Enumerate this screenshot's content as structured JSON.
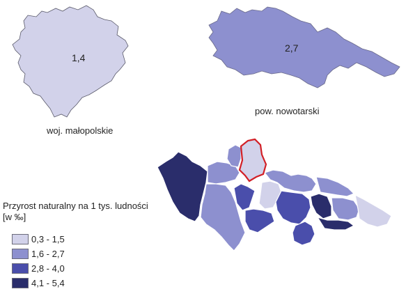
{
  "map": {
    "voivodeship": {
      "name": "woj. małopolskie",
      "value": "1,4",
      "fill": "#d2d2ea"
    },
    "county": {
      "name": "pow. nowotarski",
      "value": "2,7",
      "fill": "#8d90cf"
    },
    "communes_highlight_color": "#d21f26",
    "legend": {
      "title": "Przyrost naturalny na 1 tys. ludności",
      "unit": "[w ‰]",
      "classes": [
        {
          "label": "0,3 - 1,5",
          "color": "#d2d2ea"
        },
        {
          "label": "1,6 - 2,7",
          "color": "#8d90cf"
        },
        {
          "label": "2,8 - 4,0",
          "color": "#4a4eab"
        },
        {
          "label": "4,1 - 5,4",
          "color": "#2a2d6b"
        }
      ]
    }
  }
}
